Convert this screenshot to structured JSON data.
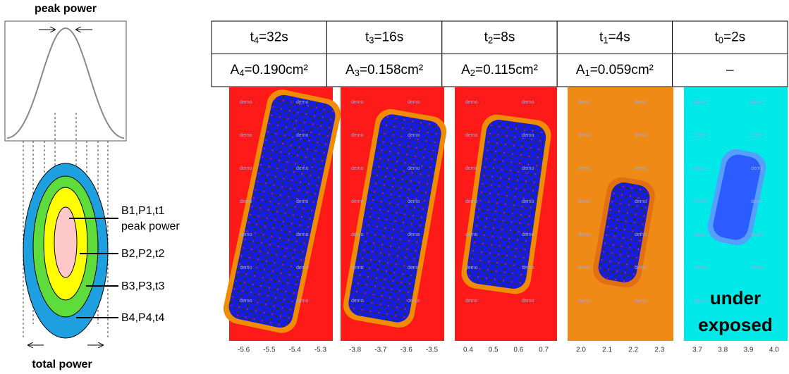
{
  "left": {
    "top_label": "peak power",
    "bottom_label": "total power",
    "bands": [
      {
        "label": "B1,P1,t1",
        "note": "peak power"
      },
      {
        "label": "B2,P2,t2"
      },
      {
        "label": "B3,P3,t3"
      },
      {
        "label": "B4,P4,t4"
      }
    ]
  },
  "table": {
    "columns": [
      {
        "time": {
          "sym": "t",
          "sub": "4",
          "rest": "=32s"
        },
        "area": {
          "sym": "A",
          "sub": "4",
          "rest": "=0.190cm²"
        }
      },
      {
        "time": {
          "sym": "t",
          "sub": "3",
          "rest": "=16s"
        },
        "area": {
          "sym": "A",
          "sub": "3",
          "rest": "=0.158cm²"
        }
      },
      {
        "time": {
          "sym": "t",
          "sub": "2",
          "rest": "=8s"
        },
        "area": {
          "sym": "A",
          "sub": "2",
          "rest": "=0.115cm²"
        }
      },
      {
        "time": {
          "sym": "t",
          "sub": "1",
          "rest": "=4s"
        },
        "area": {
          "sym": "A",
          "sub": "1",
          "rest": "=0.059cm²"
        }
      },
      {
        "time": {
          "sym": "t",
          "sub": "0",
          "rest": "=2s"
        },
        "area_text": "–"
      }
    ]
  },
  "panels": [
    {
      "ticks": [
        "-5.6",
        "-5.5",
        "-5.4",
        "-5.3"
      ]
    },
    {
      "ticks": [
        "-3.8",
        "-3.7",
        "-3.6",
        "-3.5"
      ]
    },
    {
      "ticks": [
        "0.4",
        "0.5",
        "0.6",
        "0.7"
      ]
    },
    {
      "ticks": [
        "2.0",
        "2.1",
        "2.2",
        "2.3"
      ]
    },
    {
      "ticks": [
        "3.7",
        "3.8",
        "3.9",
        "4.0"
      ]
    }
  ],
  "watermark": "demo",
  "overlay": [
    "under",
    "exposed"
  ]
}
